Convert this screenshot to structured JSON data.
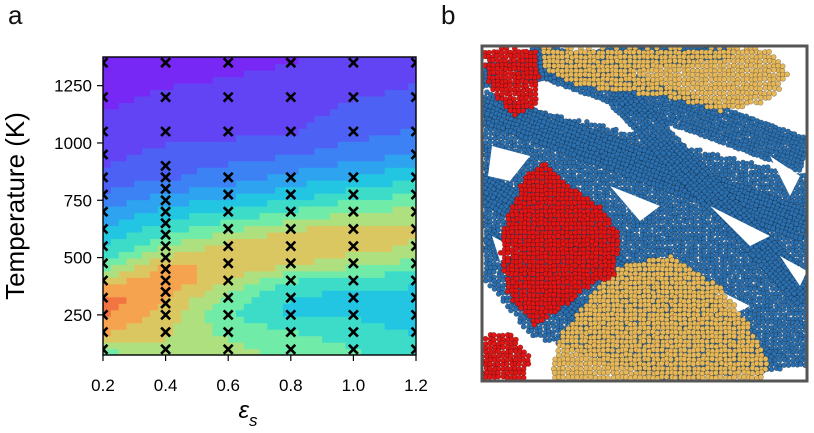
{
  "panels": {
    "a": "a",
    "b": "b"
  },
  "chart_data": [
    {
      "type": "heatmap",
      "panel": "a",
      "title": "",
      "xlabel": "ε",
      "xlabel_sub": "s",
      "ylabel": "Temperature (K)",
      "xlim": [
        0.2,
        1.2
      ],
      "ylim": [
        75,
        1375
      ],
      "xticks": [
        0.2,
        0.4,
        0.6,
        0.8,
        1.0,
        1.2
      ],
      "xtick_labels": [
        "0.2",
        "0.4",
        "0.6",
        "0.8",
        "1.0",
        "1.2"
      ],
      "yticks": [
        250,
        500,
        750,
        1000,
        1250
      ],
      "ytick_labels": [
        "250",
        "500",
        "750",
        "1000",
        "1250"
      ],
      "grid": false,
      "colormap": "rainbow (violet = low, red = high)",
      "x": [
        0.2,
        0.4,
        0.6,
        0.8,
        1.0,
        1.2
      ],
      "y": [
        100,
        175,
        250,
        325,
        400,
        475,
        550,
        625,
        700,
        775,
        850,
        950,
        1050,
        1200,
        1350
      ],
      "z": [
        [
          0.6,
          0.7,
          0.65,
          0.6,
          0.55,
          0.5
        ],
        [
          0.8,
          0.72,
          0.6,
          0.55,
          0.5,
          0.45
        ],
        [
          0.9,
          0.75,
          0.55,
          0.45,
          0.45,
          0.4
        ],
        [
          0.92,
          0.8,
          0.6,
          0.45,
          0.42,
          0.42
        ],
        [
          0.75,
          0.88,
          0.7,
          0.55,
          0.5,
          0.48
        ],
        [
          0.55,
          0.78,
          0.8,
          0.72,
          0.65,
          0.6
        ],
        [
          0.45,
          0.62,
          0.75,
          0.8,
          0.75,
          0.7
        ],
        [
          0.38,
          0.5,
          0.6,
          0.7,
          0.75,
          0.72
        ],
        [
          0.3,
          0.4,
          0.48,
          0.55,
          0.62,
          0.65
        ],
        [
          0.22,
          0.3,
          0.35,
          0.42,
          0.5,
          0.55
        ],
        [
          0.15,
          0.2,
          0.25,
          0.32,
          0.38,
          0.45
        ],
        [
          0.1,
          0.15,
          0.18,
          0.2,
          0.25,
          0.3
        ],
        [
          0.06,
          0.09,
          0.1,
          0.12,
          0.18,
          0.22
        ],
        [
          0.03,
          0.05,
          0.06,
          0.08,
          0.12,
          0.15
        ],
        [
          0.01,
          0.02,
          0.03,
          0.04,
          0.06,
          0.08
        ]
      ],
      "sample_points": [
        {
          "x": 0.2,
          "t": [
            100,
            175,
            250,
            325,
            400,
            475,
            550,
            625,
            700,
            775,
            850,
            950,
            1050,
            1200,
            1350
          ]
        },
        {
          "x": 0.4,
          "t": [
            100,
            175,
            250,
            300,
            350,
            400,
            450,
            500,
            550,
            600,
            650,
            700,
            750,
            800,
            850,
            900,
            1050,
            1200,
            1350
          ]
        },
        {
          "x": 0.6,
          "t": [
            100,
            175,
            250,
            325,
            400,
            475,
            550,
            625,
            700,
            775,
            850,
            1050,
            1200,
            1350
          ]
        },
        {
          "x": 0.8,
          "t": [
            100,
            175,
            250,
            325,
            400,
            475,
            550,
            625,
            700,
            775,
            850,
            1050,
            1200,
            1350
          ]
        },
        {
          "x": 1.0,
          "t": [
            100,
            175,
            250,
            325,
            400,
            475,
            550,
            625,
            700,
            775,
            850,
            1050,
            1200,
            1350
          ]
        },
        {
          "x": 1.2,
          "t": [
            100,
            175,
            250,
            325,
            400,
            475,
            550,
            625,
            700,
            775,
            850,
            950,
            1050,
            1200,
            1350
          ]
        }
      ]
    }
  ],
  "snapshot": {
    "panel": "b",
    "colors": {
      "background": "#ffffff",
      "frame": "#555555",
      "blue": "#2b6fae",
      "red": "#e01616",
      "gold": "#e6b85a"
    }
  }
}
